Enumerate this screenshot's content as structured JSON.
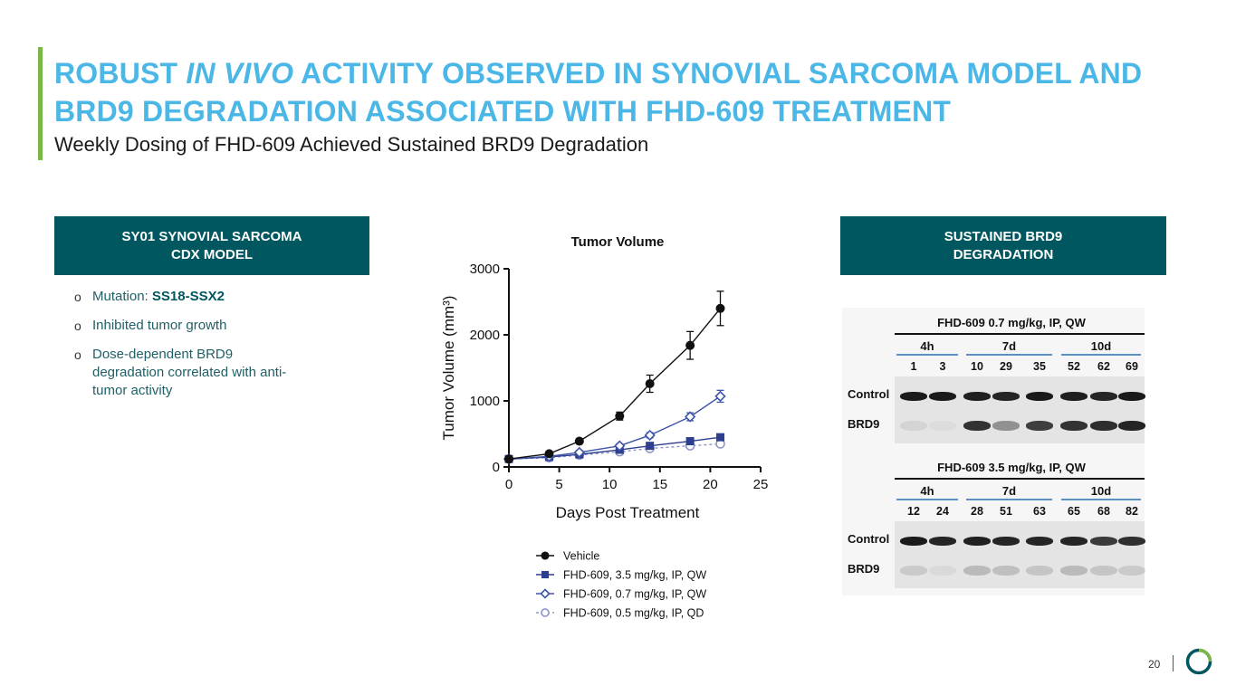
{
  "slide": {
    "title_part1": "ROBUST ",
    "title_italic": "IN VIVO",
    "title_part2": " ACTIVITY OBSERVED IN SYNOVIAL SARCOMA MODEL AND BRD9 DEGRADATION ASSOCIATED WITH FHD-609 TREATMENT",
    "subtitle": "Weekly Dosing of FHD-609 Achieved Sustained BRD9 Degradation",
    "page_number": "20",
    "colors": {
      "title": "#4ab7e6",
      "accent": "#7ab648",
      "header_bg": "#00575f"
    }
  },
  "left_panel": {
    "header_line1": "SY01 SYNOVIAL SARCOMA",
    "header_line2": "CDX MODEL",
    "bullet_marker": "o",
    "bullet1_label": "Mutation: ",
    "bullet1_value": "SS18-SSX2",
    "bullet2": "Inhibited tumor growth",
    "bullet3": "Dose-dependent BRD9 degradation correlated with anti-tumor activity"
  },
  "right_panel": {
    "header_line1": "SUSTAINED BRD9",
    "header_line2": "DEGRADATION",
    "blots": [
      {
        "title": "FHD-609  0.7 mg/kg, IP, QW",
        "timepoints": [
          "4h",
          "7d",
          "10d"
        ],
        "lanes": [
          "1",
          "3",
          "10",
          "29",
          "35",
          "52",
          "62",
          "69"
        ],
        "row_labels": [
          "Control",
          "BRD9"
        ]
      },
      {
        "title": "FHD-609  3.5 mg/kg, IP, QW",
        "timepoints": [
          "4h",
          "7d",
          "10d"
        ],
        "lanes": [
          "12",
          "24",
          "28",
          "51",
          "63",
          "65",
          "68",
          "82"
        ],
        "row_labels": [
          "Control",
          "BRD9"
        ]
      }
    ]
  },
  "chart_data": {
    "type": "line",
    "title": "Tumor Volume",
    "xlabel": "Days Post Treatment",
    "ylabel": "Tumor Volume (mm³)",
    "xlim": [
      0,
      25
    ],
    "ylim": [
      0,
      3000
    ],
    "xticks": [
      0,
      5,
      10,
      15,
      20,
      25
    ],
    "yticks": [
      0,
      1000,
      2000,
      3000
    ],
    "grid": false,
    "legend_position": "bottom",
    "series": [
      {
        "name": "Vehicle",
        "marker": "filled-circle",
        "color": "#111111",
        "dashed": false,
        "x": [
          0,
          4,
          7,
          11,
          14,
          18,
          21
        ],
        "y": [
          120,
          200,
          390,
          770,
          1260,
          1840,
          2400
        ],
        "err": [
          0,
          20,
          30,
          60,
          130,
          210,
          260
        ]
      },
      {
        "name": "FHD-609, 3.5 mg/kg, IP, QW",
        "marker": "filled-square",
        "color": "#2f3f8f",
        "dashed": false,
        "x": [
          0,
          4,
          7,
          11,
          14,
          18,
          21
        ],
        "y": [
          120,
          150,
          190,
          260,
          320,
          390,
          450
        ],
        "err": [
          0,
          15,
          15,
          20,
          25,
          35,
          40
        ]
      },
      {
        "name": "FHD-609, 0.7 mg/kg, IP, QW",
        "marker": "open-diamond",
        "color": "#3d55a8",
        "dashed": false,
        "x": [
          0,
          4,
          7,
          11,
          14,
          18,
          21
        ],
        "y": [
          120,
          160,
          220,
          320,
          480,
          760,
          1070
        ],
        "err": [
          0,
          15,
          20,
          30,
          40,
          60,
          90
        ]
      },
      {
        "name": "FHD-609, 0.5 mg/kg, IP, QD",
        "marker": "open-circle",
        "color": "#8f95c8",
        "dashed": true,
        "x": [
          0,
          4,
          7,
          11,
          14,
          18,
          21
        ],
        "y": [
          120,
          140,
          180,
          230,
          280,
          320,
          350
        ],
        "err": [
          0,
          10,
          15,
          15,
          20,
          25,
          25
        ]
      }
    ]
  }
}
